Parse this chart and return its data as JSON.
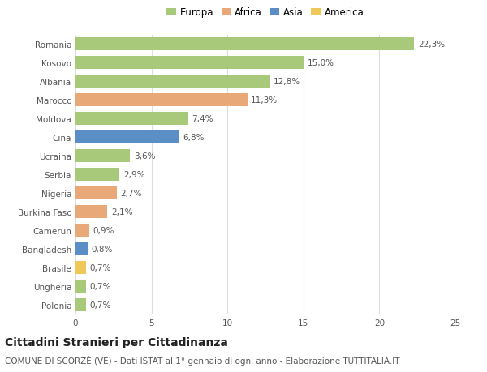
{
  "categories": [
    "Romania",
    "Kosovo",
    "Albania",
    "Marocco",
    "Moldova",
    "Cina",
    "Ucraina",
    "Serbia",
    "Nigeria",
    "Burkina Faso",
    "Camerun",
    "Bangladesh",
    "Brasile",
    "Ungheria",
    "Polonia"
  ],
  "values": [
    22.3,
    15.0,
    12.8,
    11.3,
    7.4,
    6.8,
    3.6,
    2.9,
    2.7,
    2.1,
    0.9,
    0.8,
    0.7,
    0.7,
    0.7
  ],
  "labels": [
    "22,3%",
    "15,0%",
    "12,8%",
    "11,3%",
    "7,4%",
    "6,8%",
    "3,6%",
    "2,9%",
    "2,7%",
    "2,1%",
    "0,9%",
    "0,8%",
    "0,7%",
    "0,7%",
    "0,7%"
  ],
  "continents": [
    "Europa",
    "Europa",
    "Europa",
    "Africa",
    "Europa",
    "Asia",
    "Europa",
    "Europa",
    "Africa",
    "Africa",
    "Africa",
    "Asia",
    "America",
    "Europa",
    "Europa"
  ],
  "continent_colors": {
    "Europa": "#a8c87a",
    "Africa": "#e8a878",
    "Asia": "#5b8ec4",
    "America": "#f0c858"
  },
  "legend_order": [
    "Europa",
    "Africa",
    "Asia",
    "America"
  ],
  "title": "Cittadini Stranieri per Cittadinanza",
  "subtitle": "COMUNE DI SCORZÈ (VE) - Dati ISTAT al 1° gennaio di ogni anno - Elaborazione TUTTITALIA.IT",
  "xlim": [
    0,
    25
  ],
  "xticks": [
    0,
    5,
    10,
    15,
    20,
    25
  ],
  "background_color": "#ffffff",
  "grid_color": "#dddddd",
  "bar_height": 0.68,
  "title_fontsize": 10,
  "subtitle_fontsize": 7.5,
  "label_fontsize": 7.5,
  "tick_fontsize": 7.5,
  "legend_fontsize": 8.5
}
